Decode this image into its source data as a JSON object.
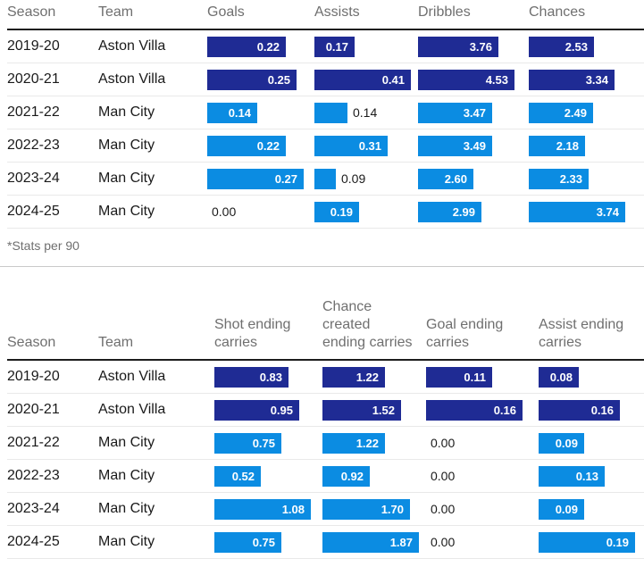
{
  "colors": {
    "aston_villa_bar": "#1f2b94",
    "man_city_bar": "#0b8ce2",
    "header_text": "#6f6f6f",
    "body_text": "#1a1a1a",
    "value_label_inside": "#ffffff",
    "header_rule": "#1d1d1d",
    "row_separator": "#e9e9e9"
  },
  "team_colors": {
    "Aston Villa": "#1f2b94",
    "Man City": "#0b8ce2"
  },
  "footnote": "*Stats per 90",
  "chart_data": [
    {
      "type": "table",
      "style": "horizontal bars scaled to each column max",
      "label_columns": [
        "Season",
        "Team"
      ],
      "categories": [
        "2019-20",
        "2020-21",
        "2021-22",
        "2022-23",
        "2023-24",
        "2024-25"
      ],
      "teams": [
        "Aston Villa",
        "Aston Villa",
        "Man City",
        "Man City",
        "Man City",
        "Man City"
      ],
      "series": [
        {
          "name": "Goals",
          "values": [
            0.22,
            0.25,
            0.14,
            0.22,
            0.27,
            0.0
          ]
        },
        {
          "name": "Assists",
          "values": [
            0.17,
            0.41,
            0.14,
            0.31,
            0.09,
            0.19
          ]
        },
        {
          "name": "Dribbles",
          "values": [
            3.76,
            4.53,
            3.47,
            3.49,
            2.6,
            2.99
          ]
        },
        {
          "name": "Chances",
          "values": [
            2.53,
            3.34,
            2.49,
            2.18,
            2.33,
            3.74
          ]
        }
      ],
      "footnote": "*Stats per 90"
    },
    {
      "type": "table",
      "style": "horizontal bars scaled to each column max",
      "label_columns": [
        "Season",
        "Team"
      ],
      "categories": [
        "2019-20",
        "2020-21",
        "2021-22",
        "2022-23",
        "2023-24",
        "2024-25"
      ],
      "teams": [
        "Aston Villa",
        "Aston Villa",
        "Man City",
        "Man City",
        "Man City",
        "Man City"
      ],
      "series": [
        {
          "name": "Shot ending carries",
          "values": [
            0.83,
            0.95,
            0.75,
            0.52,
            1.08,
            0.75
          ]
        },
        {
          "name": "Chance created ending carries",
          "values": [
            1.22,
            1.52,
            1.22,
            0.92,
            1.7,
            1.87
          ]
        },
        {
          "name": "Goal ending carries",
          "values": [
            0.11,
            0.16,
            0.0,
            0.0,
            0.0,
            0.0
          ]
        },
        {
          "name": "Assist ending carries",
          "values": [
            0.08,
            0.16,
            0.09,
            0.13,
            0.09,
            0.19
          ]
        }
      ]
    }
  ]
}
